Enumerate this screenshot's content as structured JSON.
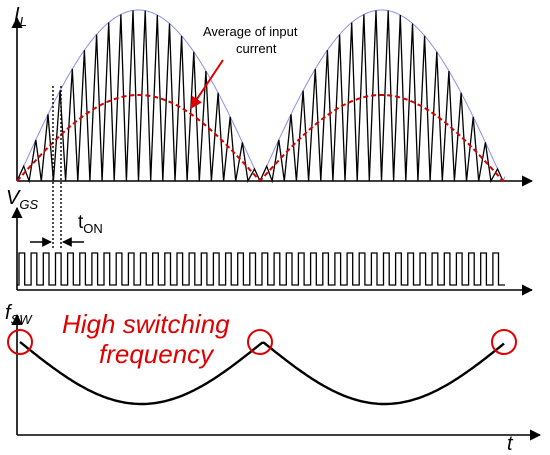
{
  "labels": {
    "il_main": "I",
    "il_sub": "L",
    "vgs_main": "V",
    "vgs_sub": "GS",
    "fsw_main": "f",
    "fsw_sub": "SW",
    "ton_main": "t",
    "ton_sub": "ON",
    "t_axis": "t",
    "avg_line1": "Average of input",
    "avg_line2": "current",
    "hs_line1": "High switching",
    "hs_line2": "frequency"
  },
  "colors": {
    "axis": "#000000",
    "envelope": "#8a8fe8",
    "triangle": "#000000",
    "average": "#d40000",
    "callout": "#e00000",
    "circle": "#e00000"
  }
}
